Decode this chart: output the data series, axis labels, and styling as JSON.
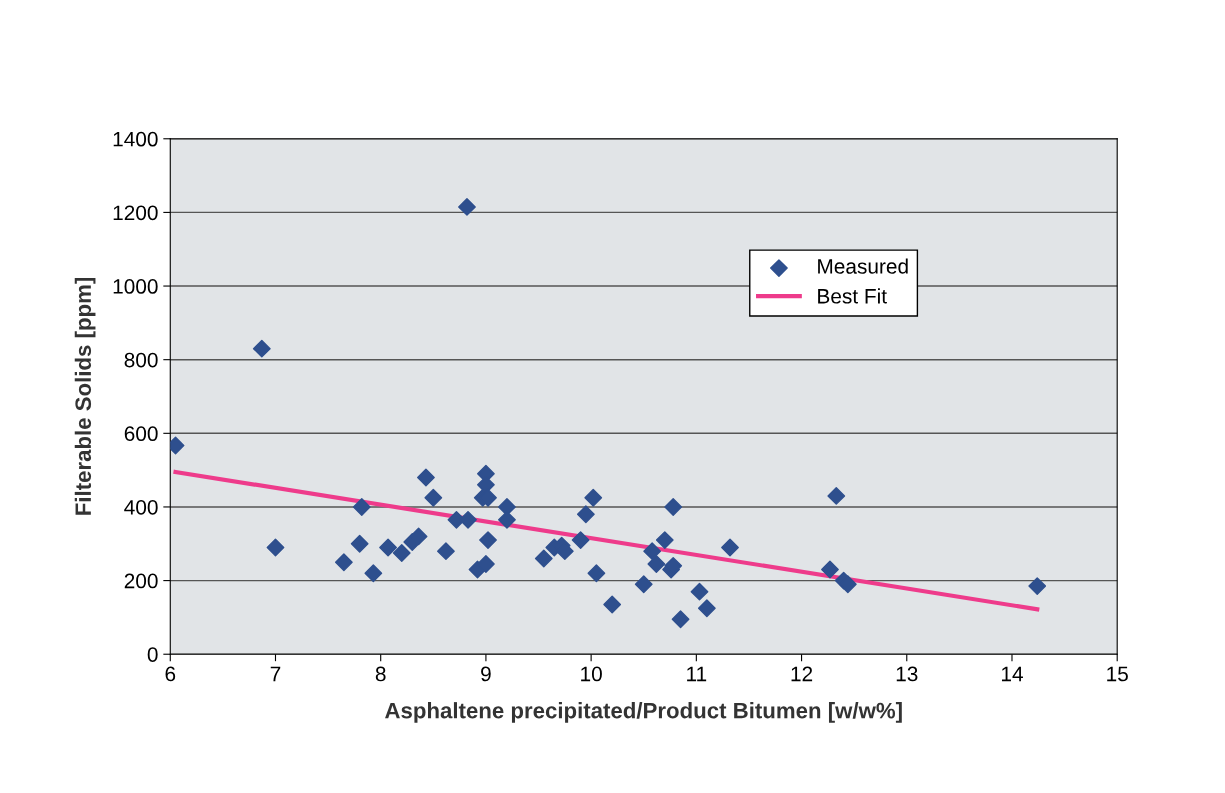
{
  "chart_data": {
    "type": "scatter",
    "xlabel": "Asphaltene precipitated/Product Bitumen [w/w%]",
    "ylabel": "Filterable Solids [ppm]",
    "xlim": [
      6,
      15
    ],
    "xticks": [
      6,
      7,
      8,
      9,
      10,
      11,
      12,
      13,
      14,
      15
    ],
    "ylim": [
      0,
      1400
    ],
    "yticks": [
      0,
      200,
      400,
      600,
      800,
      1000,
      1200,
      1400
    ],
    "grid": "y",
    "legend": "right",
    "series": [
      {
        "name": "Measured",
        "marker": "diamond",
        "color": "#2e4f8e",
        "x": [
          6.05,
          6.87,
          7.0,
          7.65,
          7.8,
          7.82,
          7.93,
          8.07,
          8.2,
          8.3,
          8.36,
          8.43,
          8.5,
          8.62,
          8.72,
          8.82,
          8.83,
          8.92,
          8.97,
          9.0,
          9.0,
          9.02,
          9.0,
          9.02,
          9.2,
          9.2,
          9.55,
          9.65,
          9.72,
          9.75,
          9.9,
          9.95,
          10.02,
          10.05,
          10.2,
          10.5,
          10.58,
          10.62,
          10.7,
          10.76,
          10.78,
          10.78,
          10.85,
          11.03,
          11.1,
          11.32,
          12.27,
          12.33,
          12.4,
          12.44,
          14.24
        ],
        "values": [
          567,
          830,
          290,
          250,
          300,
          400,
          220,
          290,
          275,
          305,
          320,
          480,
          425,
          280,
          365,
          1215,
          365,
          230,
          425,
          490,
          460,
          425,
          245,
          310,
          400,
          365,
          260,
          290,
          295,
          280,
          310,
          380,
          425,
          220,
          135,
          190,
          280,
          245,
          310,
          230,
          240,
          400,
          95,
          170,
          125,
          290,
          230,
          430,
          200,
          190,
          185
        ]
      },
      {
        "name": "Best Fit",
        "type": "line",
        "color": "#ee3b8b",
        "x": [
          6.05,
          14.24
        ],
        "values": [
          495,
          122
        ]
      }
    ]
  }
}
